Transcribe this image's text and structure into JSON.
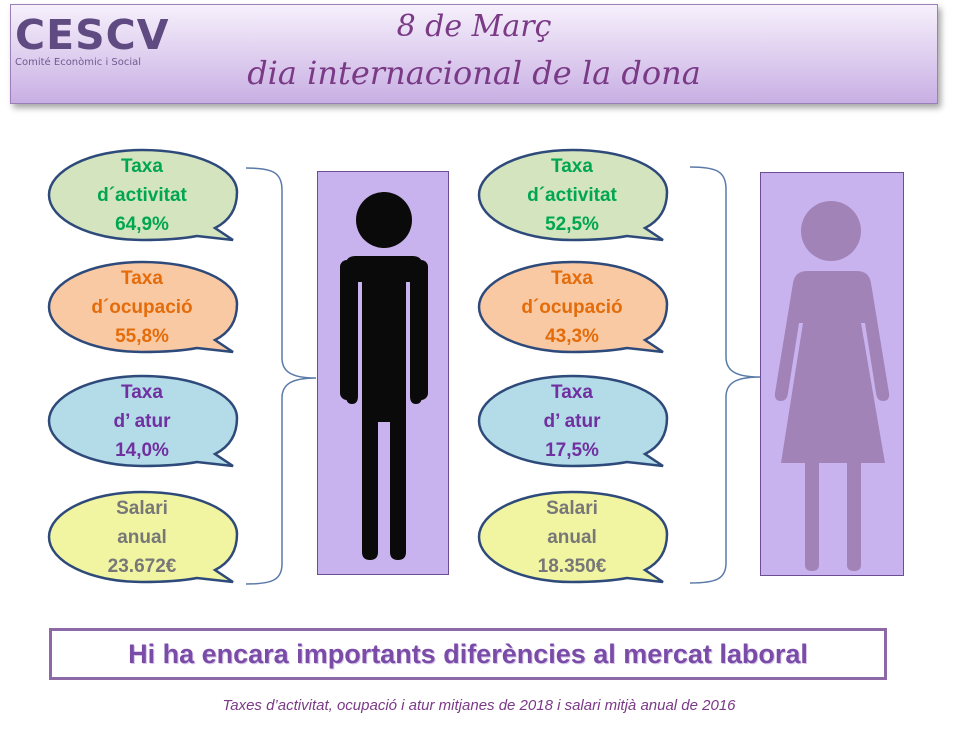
{
  "header": {
    "logo_text": "CESCV",
    "logo_subtitle": "Comité Econòmic i Social",
    "title_line1": "8 de Març",
    "title_line2": "dia internacional de la dona"
  },
  "men": {
    "activitat": [
      "Taxa",
      "d´activitat",
      "64,9%"
    ],
    "ocupacio": [
      "Taxa",
      "d´ocupació",
      "55,8%"
    ],
    "atur": [
      "Taxa",
      "d’ atur",
      "14,0%"
    ],
    "salari": [
      "Salari",
      "anual",
      "23.672€"
    ],
    "figure_icon": "man-icon"
  },
  "women": {
    "activitat": [
      "Taxa",
      "d´activitat",
      "52,5%"
    ],
    "ocupacio": [
      "Taxa",
      "d´ocupació",
      "43,3%"
    ],
    "atur": [
      "Taxa",
      "d’ atur",
      "17,5%"
    ],
    "salari": [
      "Salari",
      "anual",
      "18.350€"
    ],
    "figure_icon": "woman-icon"
  },
  "colors": {
    "activitat_fill": "#d4e4bf",
    "activitat_text": "#00a651",
    "ocupacio_fill": "#f9c9a4",
    "ocupacio_text": "#e46c0a",
    "atur_fill": "#b4dbe8",
    "atur_text": "#7030a0",
    "salari_fill": "#f1f5a2",
    "salari_text": "#777777",
    "bubble_border": "#2e4a7a",
    "figure_box": "#c9b3ef",
    "man_figure": "#0a0a0a",
    "woman_figure": "#a183b8"
  },
  "banner_text": "Hi ha encara importants diferències al mercat laboral",
  "footnote": "Taxes d’activitat, ocupació i atur mitjanes de 2018 i salari mitjà  anual de 2016"
}
